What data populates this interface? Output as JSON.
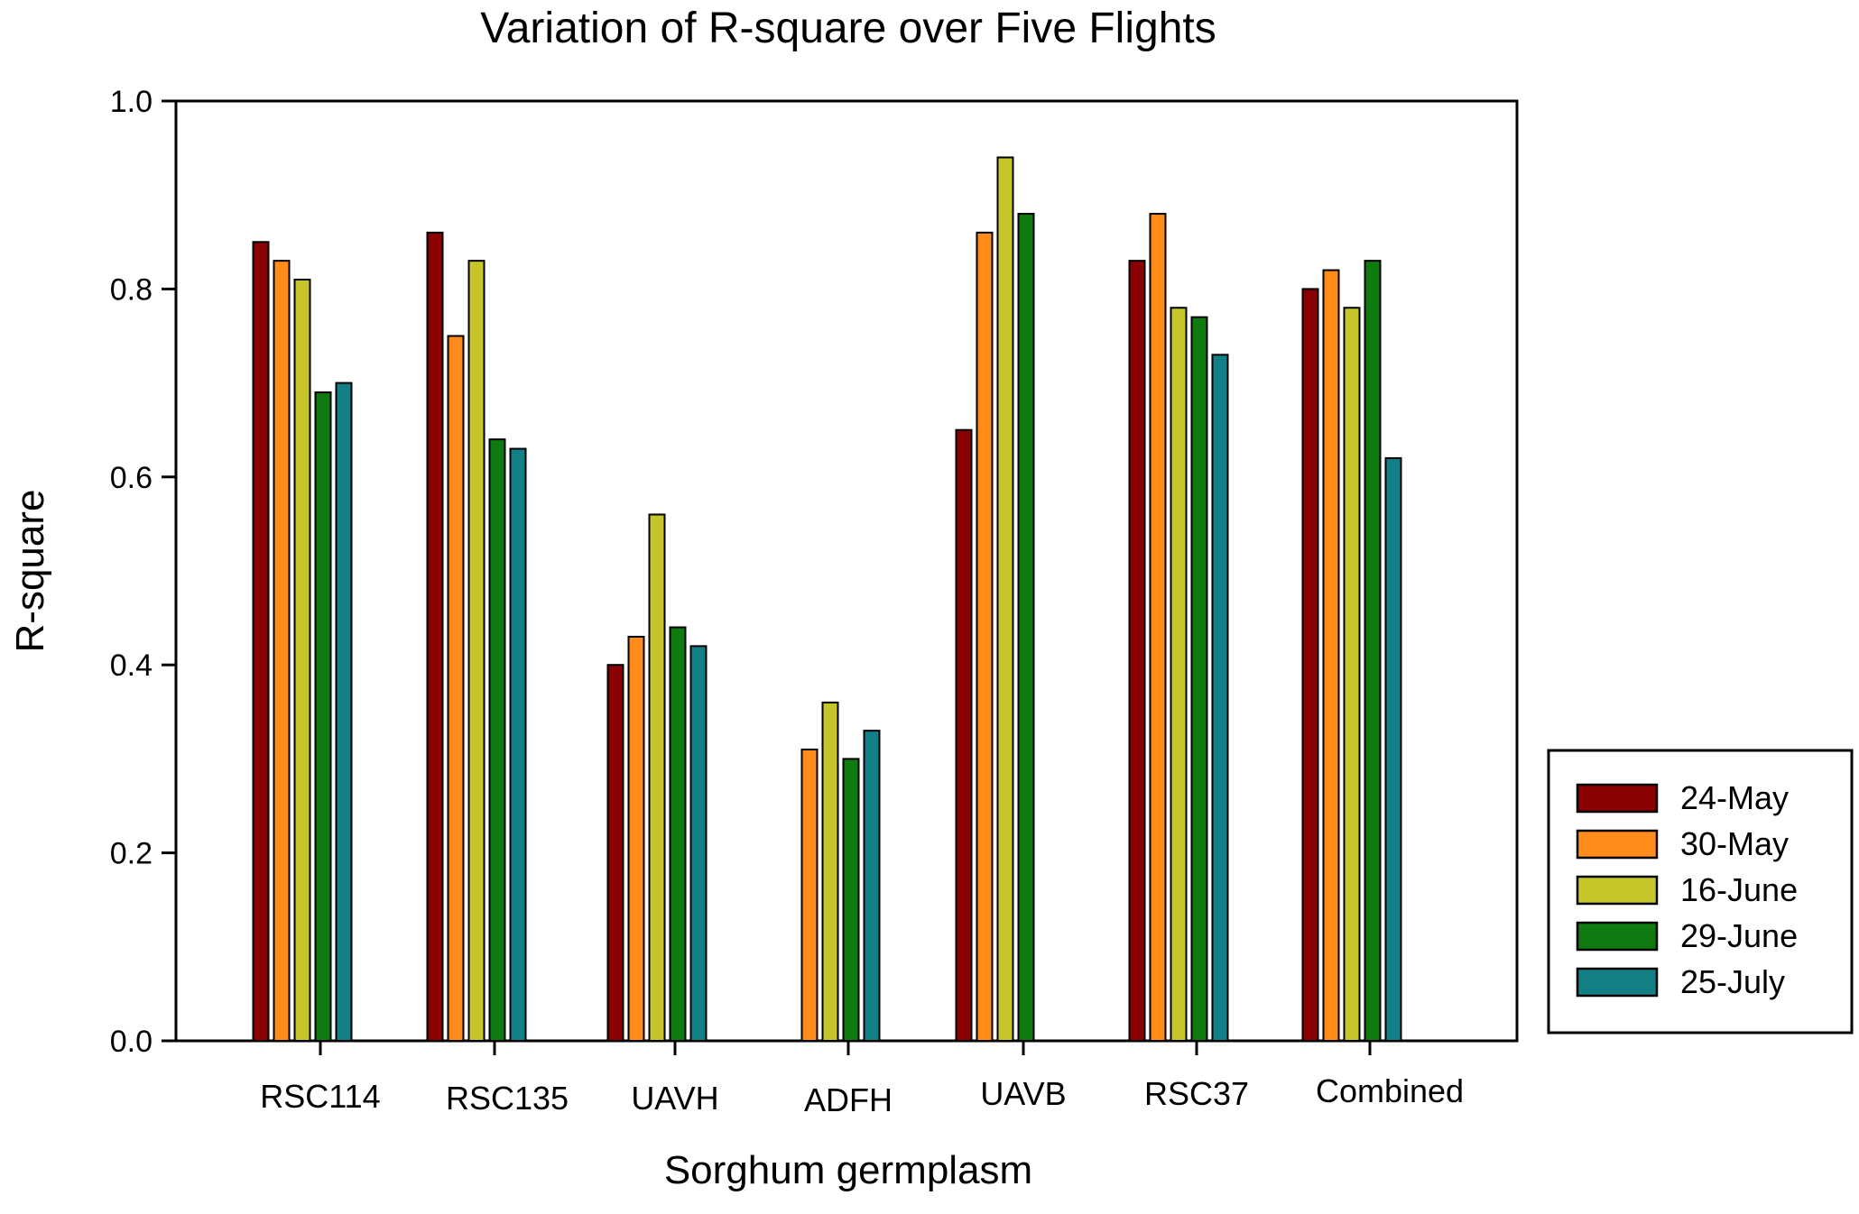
{
  "chart_data": {
    "type": "bar",
    "title": "Variation of R-square over Five Flights",
    "xlabel": "Sorghum germplasm",
    "ylabel": "R-square",
    "ylim": [
      0,
      1.0
    ],
    "yticks": [
      "0.0",
      "0.2",
      "0.4",
      "0.6",
      "0.8",
      "1.0"
    ],
    "categories": [
      "RSC114",
      "RSC135",
      "UAVH",
      "ADFH",
      "UAVB",
      "RSC37",
      "Combined"
    ],
    "series": [
      {
        "name": "24-May",
        "color": "#8b0000",
        "values": [
          0.85,
          0.86,
          0.4,
          null,
          0.65,
          0.83,
          0.8
        ]
      },
      {
        "name": "30-May",
        "color": "#ff8c1a",
        "values": [
          0.83,
          0.75,
          0.43,
          0.31,
          0.86,
          0.88,
          0.82
        ]
      },
      {
        "name": "16-June",
        "color": "#c6c62b",
        "values": [
          0.81,
          0.83,
          0.56,
          0.36,
          0.94,
          0.78,
          0.78
        ]
      },
      {
        "name": "29-June",
        "color": "#0f7a0f",
        "values": [
          0.69,
          0.64,
          0.44,
          0.3,
          0.88,
          0.77,
          0.83
        ]
      },
      {
        "name": "25-July",
        "color": "#137f87",
        "values": [
          0.7,
          0.63,
          0.42,
          0.33,
          null,
          0.73,
          0.62
        ]
      }
    ],
    "legend_position": "right",
    "grid": false
  }
}
